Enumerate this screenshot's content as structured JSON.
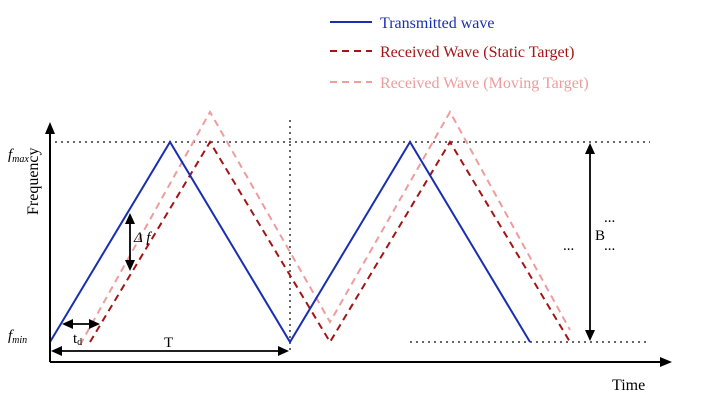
{
  "legend": {
    "items": [
      {
        "label": "Transmitted wave",
        "color": "#1a2fb0",
        "style": "solid"
      },
      {
        "label": "Received Wave (Static Target)",
        "color": "#a31515",
        "style": "dashed"
      },
      {
        "label": "Received Wave (Moving Target)",
        "color": "#ee9c9c",
        "style": "dashed"
      }
    ]
  },
  "axes": {
    "x_label": "Time",
    "y_label": "Frequency"
  },
  "labels": {
    "f_max_base": "f",
    "f_max_sub": "max",
    "f_min_base": "f",
    "f_min_sub": "min",
    "delta_f": "Δ f",
    "t_d_base": "t",
    "t_d_sub": "d",
    "period": "T",
    "bandwidth": "B",
    "ellipsis": "..."
  },
  "colors": {
    "transmitted": "#1a2fb0",
    "static": "#a31515",
    "moving": "#ee9c9c",
    "guide": "#333333"
  }
}
